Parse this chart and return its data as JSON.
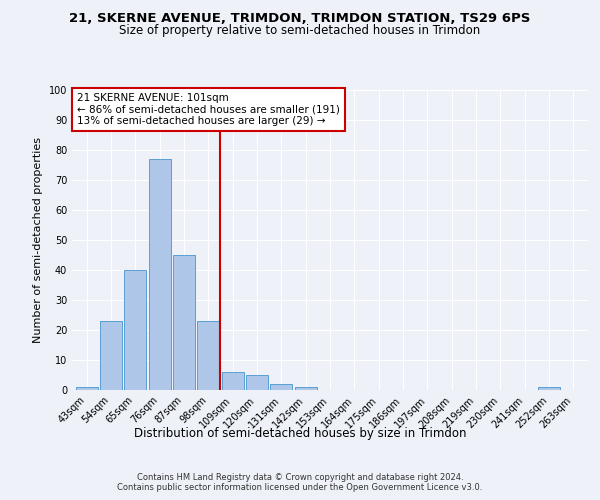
{
  "title": "21, SKERNE AVENUE, TRIMDON, TRIMDON STATION, TS29 6PS",
  "subtitle": "Size of property relative to semi-detached houses in Trimdon",
  "xlabel": "Distribution of semi-detached houses by size in Trimdon",
  "ylabel": "Number of semi-detached properties",
  "footer1": "Contains HM Land Registry data © Crown copyright and database right 2024.",
  "footer2": "Contains public sector information licensed under the Open Government Licence v3.0.",
  "annotation_title": "21 SKERNE AVENUE: 101sqm",
  "annotation_line1": "← 86% of semi-detached houses are smaller (191)",
  "annotation_line2": "13% of semi-detached houses are larger (29) →",
  "bar_color": "#aec6e8",
  "bar_edge_color": "#5a9fd4",
  "vline_color": "#cc0000",
  "categories": [
    "43sqm",
    "54sqm",
    "65sqm",
    "76sqm",
    "87sqm",
    "98sqm",
    "109sqm",
    "120sqm",
    "131sqm",
    "142sqm",
    "153sqm",
    "164sqm",
    "175sqm",
    "186sqm",
    "197sqm",
    "208sqm",
    "219sqm",
    "230sqm",
    "241sqm",
    "252sqm",
    "263sqm"
  ],
  "values": [
    1,
    23,
    40,
    77,
    45,
    23,
    6,
    5,
    2,
    1,
    0,
    0,
    0,
    0,
    0,
    0,
    0,
    0,
    0,
    1,
    0
  ],
  "vline_x": 5.5,
  "ylim": [
    0,
    100
  ],
  "yticks": [
    0,
    10,
    20,
    30,
    40,
    50,
    60,
    70,
    80,
    90,
    100
  ],
  "background_color": "#eef2f8",
  "grid_color": "#ffffff",
  "title_fontsize": 9.5,
  "subtitle_fontsize": 8.5,
  "tick_fontsize": 7,
  "ylabel_fontsize": 8,
  "xlabel_fontsize": 8.5,
  "annotation_fontsize": 7.5,
  "footer_fontsize": 6
}
